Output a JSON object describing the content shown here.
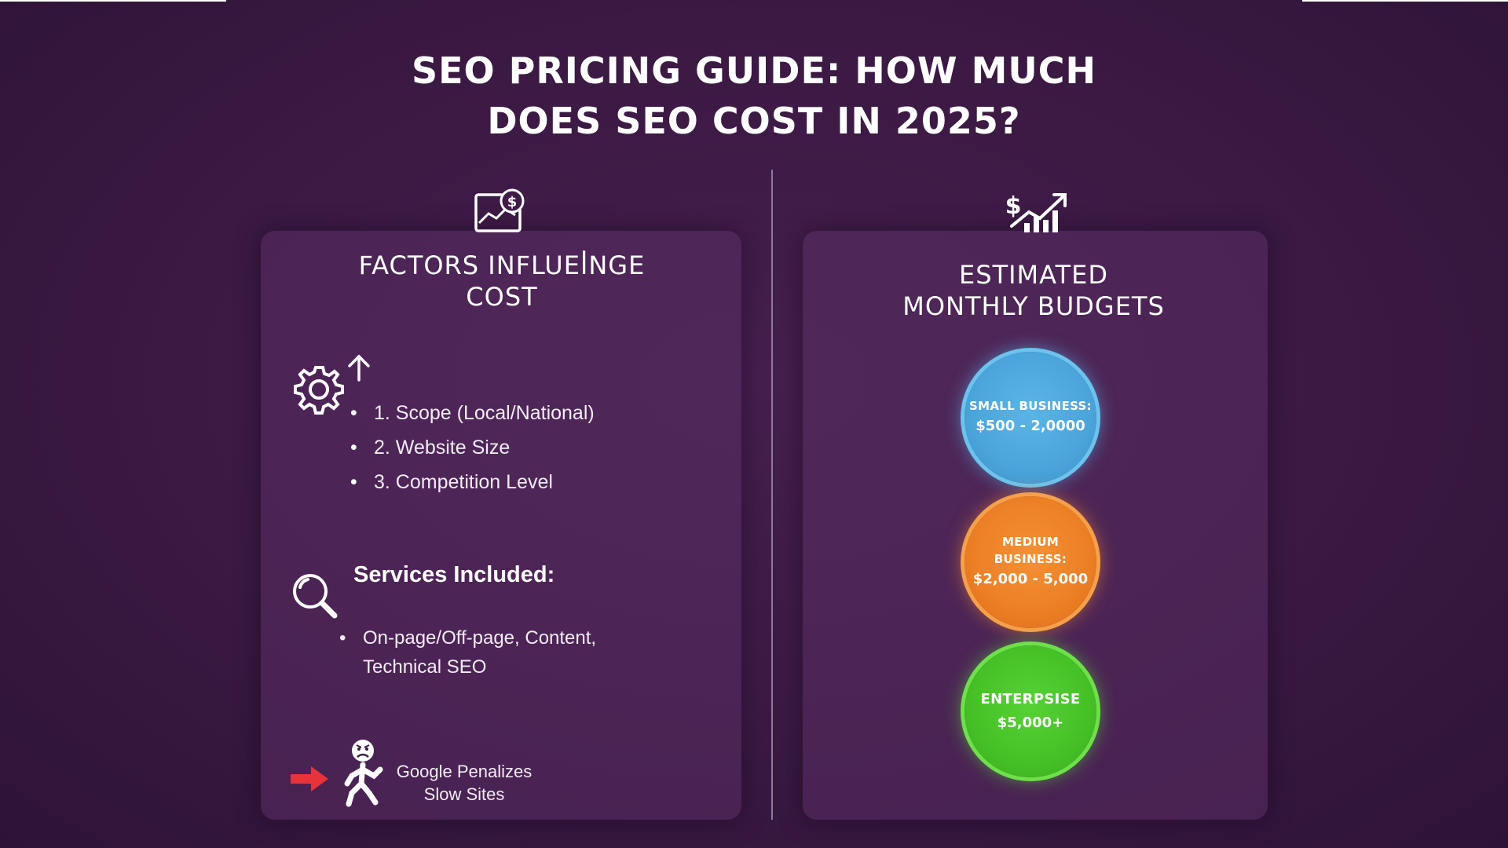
{
  "title": {
    "line1": "SEO PRICING GUIDE: HOW MUCH",
    "line2": "DOES SEO COST IN 2025?"
  },
  "factors": {
    "heading_line1": "FACTORS INFLUEꟾNGE",
    "heading_line2": "COST",
    "items": [
      "1. Scope (Local/National)",
      "2. Website Size",
      "3. Competition Level"
    ]
  },
  "services": {
    "title": "Services Included:",
    "text_line1": "On-page/Off-page, Content,",
    "text_line2": "Technical SEO"
  },
  "penalty": {
    "line1": "Google Penalizes",
    "line2": "Slow Sites"
  },
  "budgets": {
    "heading_line1": "ESTIMATED",
    "heading_line2": "MONTHLY BUDGETS",
    "tiers": [
      {
        "label": "SMALL BUSINESS:",
        "range": "$500 - 2,0000"
      },
      {
        "label": "MEDIUM BUSINESS:",
        "range": "$2,000 - 5,000"
      },
      {
        "label": "ENTERPSISE",
        "range": "$5,000+"
      }
    ]
  },
  "colors": {
    "background": "#3a1942",
    "small_business": "#4aa5da",
    "medium_business": "#ec7f25",
    "enterprise": "#45c126",
    "arrow": "#e8333a"
  },
  "icons": [
    "money-chart-icon",
    "dollar-growth-chart-icon",
    "gear-icon",
    "arrow-up-icon",
    "magnifier-icon",
    "red-arrow-icon",
    "frowning-runner-icon"
  ]
}
